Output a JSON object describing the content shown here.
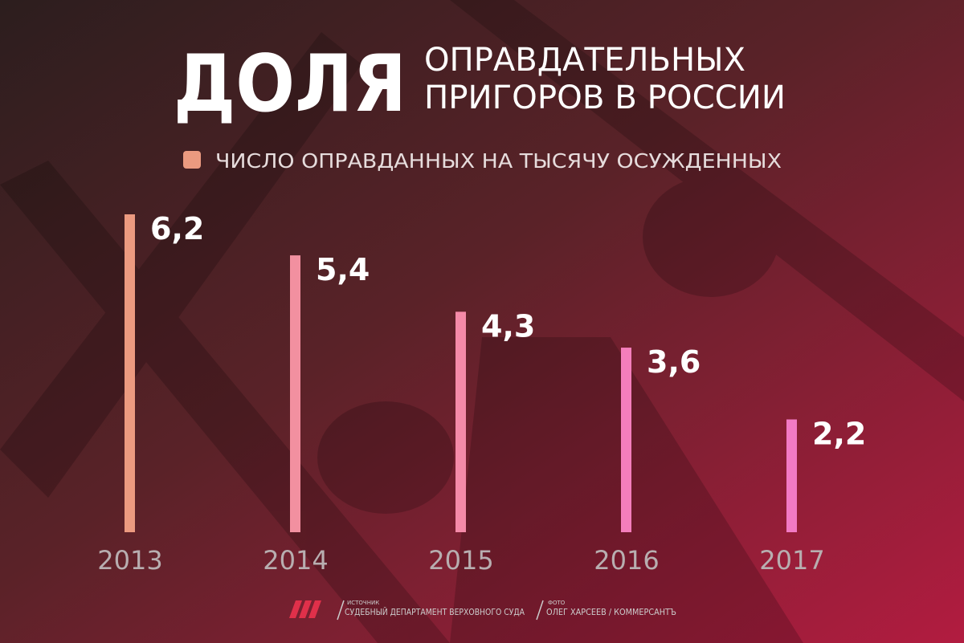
{
  "chart_data": {
    "type": "bar",
    "title": "ДОЛЯ",
    "subtitle": [
      "ОПРАВДАТЕЛЬНЫХ",
      "ПРИГОРОВ В РОССИИ"
    ],
    "categories": [
      "2013",
      "2014",
      "2015",
      "2016",
      "2017"
    ],
    "series": [
      {
        "name": "ЧИСЛО ОПРАВДАННЫХ НА ТЫСЯЧУ ОСУЖДЕННЫХ",
        "color": "#eb9a80",
        "values": [
          6.2,
          5.4,
          4.3,
          3.6,
          2.2
        ],
        "value_labels": [
          "6,2",
          "5,4",
          "4,3",
          "3,6",
          "2,2"
        ],
        "colors": [
          "#ec9a80",
          "#f290a0",
          "#f48aa8",
          "#f47ebc",
          "#f27ac4"
        ]
      }
    ],
    "source": {
      "label": "ИСТОЧНИК",
      "text": "СУДЕБНЫЙ ДЕПАРТАМЕНТ ВЕРХОВНОГО СУДА"
    },
    "photo": {
      "label": "ФОТО",
      "text": "ОЛЕГ ХАРСЕЕВ / КОММЕРСАНТЪ"
    }
  }
}
